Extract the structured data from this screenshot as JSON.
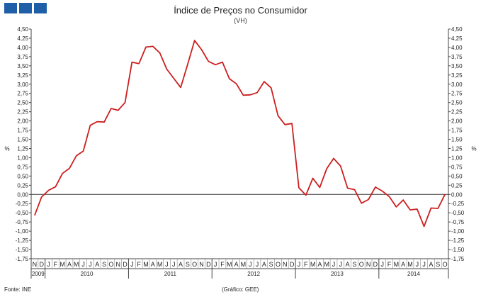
{
  "header": {
    "title": "Índice de Preços no Consumidor",
    "subtitle": "(VH)"
  },
  "footer": {
    "source": "Fonte: INE",
    "graph_credit": "(Gráfico: GEE)"
  },
  "colors": {
    "line": "#cc1f1f",
    "logo": "#1f5fa8"
  },
  "chart_data": {
    "type": "line",
    "title": "Índice de Preços no Consumidor",
    "subtitle": "(VH)",
    "ylabel_left": "%",
    "ylabel_right": "%",
    "ylim": [
      -1.75,
      4.5
    ],
    "ytick_step": 0.25,
    "ytick_labels": [
      "4,50",
      "4,25",
      "4,00",
      "3,75",
      "3,50",
      "3,25",
      "3,00",
      "2,75",
      "2,50",
      "2,25",
      "2,00",
      "1,75",
      "1,50",
      "1,25",
      "1,00",
      "0,75",
      "0,50",
      "0,25",
      "0,00",
      "-0,25",
      "-0,50",
      "-0,75",
      "-1,00",
      "-1,25",
      "-1,50",
      "-1,75"
    ],
    "month_labels": [
      "N",
      "D",
      "J",
      "F",
      "M",
      "A",
      "M",
      "J",
      "J",
      "A",
      "S",
      "O",
      "N",
      "D",
      "J",
      "F",
      "M",
      "A",
      "M",
      "J",
      "J",
      "A",
      "S",
      "O",
      "N",
      "D",
      "J",
      "F",
      "M",
      "A",
      "M",
      "J",
      "J",
      "A",
      "S",
      "O",
      "N",
      "D",
      "J",
      "F",
      "M",
      "A",
      "M",
      "J",
      "J",
      "A",
      "S",
      "O",
      "N",
      "D",
      "J",
      "F",
      "M",
      "A",
      "M",
      "J",
      "J",
      "A",
      "S",
      "O"
    ],
    "year_labels": [
      {
        "label": "2009",
        "start": 0,
        "end": 1
      },
      {
        "label": "2010",
        "start": 2,
        "end": 13
      },
      {
        "label": "2011",
        "start": 14,
        "end": 25
      },
      {
        "label": "2012",
        "start": 26,
        "end": 37
      },
      {
        "label": "2013",
        "start": 38,
        "end": 49
      },
      {
        "label": "2014",
        "start": 50,
        "end": 59
      }
    ],
    "series": [
      {
        "values": [
          -0.57,
          -0.07,
          0.11,
          0.21,
          0.57,
          0.71,
          1.05,
          1.18,
          1.88,
          1.98,
          1.97,
          2.34,
          2.29,
          2.5,
          3.6,
          3.56,
          4.01,
          4.03,
          3.85,
          3.41,
          3.16,
          2.91,
          3.54,
          4.19,
          3.94,
          3.62,
          3.53,
          3.6,
          3.15,
          3.01,
          2.7,
          2.71,
          2.77,
          3.07,
          2.9,
          2.14,
          1.9,
          1.93,
          0.18,
          -0.02,
          0.44,
          0.19,
          0.7,
          0.98,
          0.77,
          0.17,
          0.13,
          -0.24,
          -0.14,
          0.2,
          0.09,
          -0.06,
          -0.34,
          -0.15,
          -0.42,
          -0.4,
          -0.87,
          -0.37,
          -0.38,
          0.0
        ]
      }
    ],
    "grid": false,
    "zero_line": true
  }
}
